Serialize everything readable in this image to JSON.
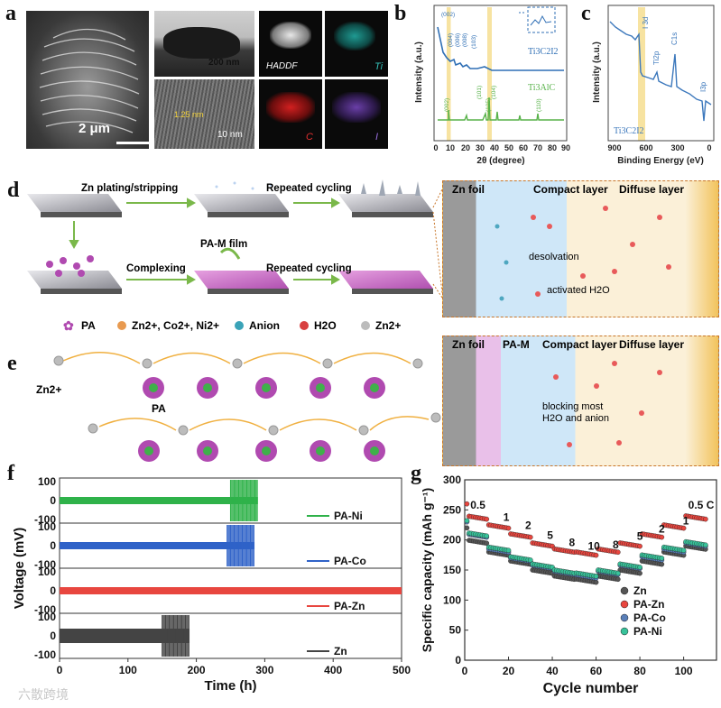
{
  "panel_labels": {
    "a": "a",
    "b": "b",
    "c": "c",
    "d": "d",
    "e": "e",
    "f": "f",
    "g": "g"
  },
  "panel_a": {
    "sem_scale": "2 μm",
    "tem_scale1": "200 nm",
    "tem_scale2": "10 nm",
    "lattice": "1.25 nm",
    "map_labels": [
      "HADDF",
      "Ti",
      "C",
      "I"
    ]
  },
  "panel_b": {
    "ylabel": "Intensity (a.u.)",
    "xlabel": "2θ (degree)",
    "ticks": [
      "0",
      "10",
      "20",
      "30",
      "40",
      "50",
      "60",
      "70",
      "80",
      "90"
    ],
    "top_label": "Ti3C2I2",
    "bottom_label": "Ti3AlC",
    "top_peaks": [
      "(002)",
      "(004)",
      "(006)",
      "(008)",
      "(103)"
    ],
    "bottom_peaks": [
      "(002)",
      "(101)",
      "(104)",
      "(105)",
      "(110)"
    ]
  },
  "panel_c": {
    "ylabel": "Intensity (a.u.)",
    "xlabel": "Binding Energy (eV)",
    "ticks": [
      "900",
      "600",
      "300",
      "0"
    ],
    "peaks": [
      "I 3d",
      "Ti2p",
      "C1s",
      "I3p"
    ],
    "sample": "Ti3C2I2"
  },
  "panel_d": {
    "zn_plating": "Zn plating/stripping",
    "repeated1": "Repeated cycling",
    "complexing": "Complexing",
    "pam_film": "PA-M film",
    "repeated2": "Repeated cycling",
    "top_right": {
      "zn_foil": "Zn foil",
      "compact": "Compact layer",
      "diffuse": "Diffuse layer",
      "desolvation": "desolvation",
      "activated": "activated H2O"
    },
    "bottom_right": {
      "zn_foil": "Zn foil",
      "pam": "PA-M",
      "compact": "Compact layer",
      "diffuse": "Diffuse layer",
      "blocking": "blocking most H2O and anion"
    }
  },
  "legend": {
    "pa": "PA",
    "metals": "Zn2+, Co2+, Ni2+",
    "anion": "Anion",
    "h2o": "H2O",
    "zn": "Zn2+"
  },
  "panel_e": {
    "zn_label": "Zn2+",
    "pa_label": "PA"
  },
  "chart_data": [
    {
      "type": "line",
      "id": "f",
      "xlabel": "Time (h)",
      "ylabel": "Voltage (mV)",
      "xlim": [
        0,
        500
      ],
      "ylim": [
        -100,
        100
      ],
      "xticks": [
        "0",
        "100",
        "200",
        "300",
        "400",
        "500"
      ],
      "yticks": [
        "100",
        "0",
        "-100"
      ],
      "series": [
        {
          "name": "PA-Ni",
          "color": "#2fb24a",
          "fail_h": 290
        },
        {
          "name": "PA-Co",
          "color": "#2f62c8",
          "fail_h": 285
        },
        {
          "name": "PA-Zn",
          "color": "#e8463f",
          "fail_h": 500
        },
        {
          "name": "Zn",
          "color": "#444444",
          "fail_h": 190
        }
      ]
    },
    {
      "type": "scatter",
      "id": "g",
      "xlabel": "Cycle number",
      "ylabel": "Specific capacity (mAh g⁻¹)",
      "xlim": [
        0,
        115
      ],
      "ylim": [
        0,
        300
      ],
      "xticks": [
        "0",
        "20",
        "40",
        "60",
        "80",
        "100"
      ],
      "yticks": [
        "0",
        "50",
        "100",
        "150",
        "200",
        "250",
        "300"
      ],
      "rate_labels": [
        "0.5",
        "1",
        "2",
        "5",
        "8",
        "10",
        "8",
        "5",
        "2",
        "1",
        "0.5 C"
      ],
      "series": [
        {
          "name": "Zn",
          "color": "#555555",
          "levels": [
            200,
            180,
            165,
            150,
            140,
            135,
            140,
            150,
            165,
            180,
            190
          ]
        },
        {
          "name": "PA-Zn",
          "color": "#e8463f",
          "levels": [
            240,
            225,
            210,
            195,
            185,
            180,
            185,
            195,
            210,
            225,
            240
          ]
        },
        {
          "name": "PA-Co",
          "color": "#5a7fb8",
          "levels": [
            210,
            185,
            170,
            158,
            148,
            142,
            148,
            158,
            172,
            185,
            195
          ]
        },
        {
          "name": "PA-Ni",
          "color": "#38c29a",
          "levels": [
            212,
            188,
            172,
            160,
            150,
            145,
            150,
            160,
            175,
            188,
            197
          ]
        }
      ]
    }
  ],
  "watermark": "六散跨境"
}
